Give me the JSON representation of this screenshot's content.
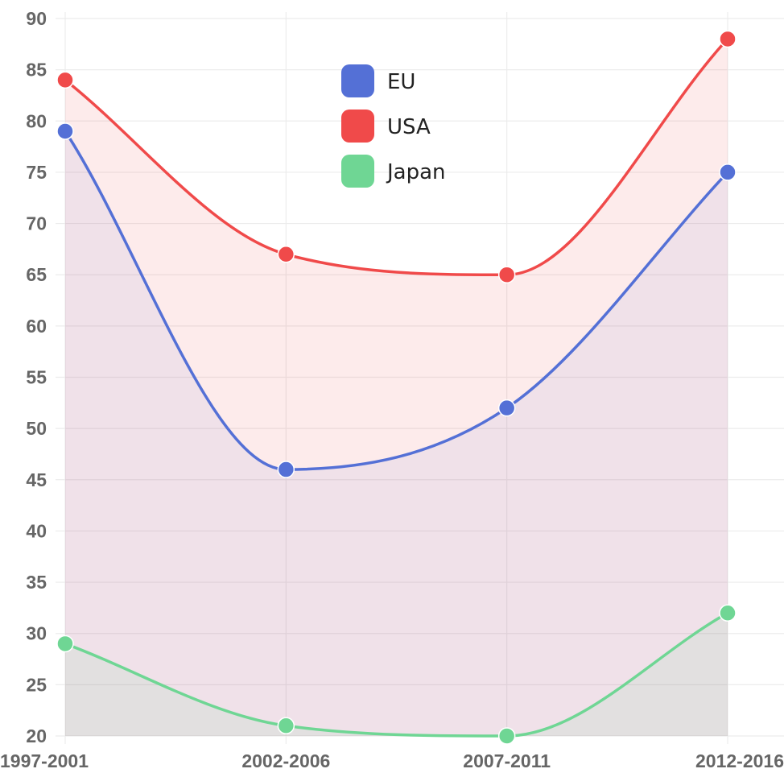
{
  "chart_data": {
    "type": "area",
    "title": "",
    "xlabel": "",
    "ylabel": "",
    "categories": [
      "1997-2001",
      "2002-2006",
      "2007-2011",
      "2012-2016"
    ],
    "ylim": [
      20,
      90
    ],
    "ytick_step": 5,
    "grid": true,
    "legend_position": "top-center",
    "series": [
      {
        "name": "EU",
        "values": [
          79,
          46,
          52,
          75
        ],
        "color": "#5470d6",
        "fill": "rgba(84,112,214,0.08)"
      },
      {
        "name": "USA",
        "values": [
          84,
          67,
          65,
          88
        ],
        "color": "#f04a4a",
        "fill": "rgba(240,74,74,0.11)"
      },
      {
        "name": "Japan",
        "values": [
          29,
          21,
          20,
          32
        ],
        "color": "#6fd694",
        "fill": "rgba(111,214,148,0.10)"
      }
    ]
  }
}
